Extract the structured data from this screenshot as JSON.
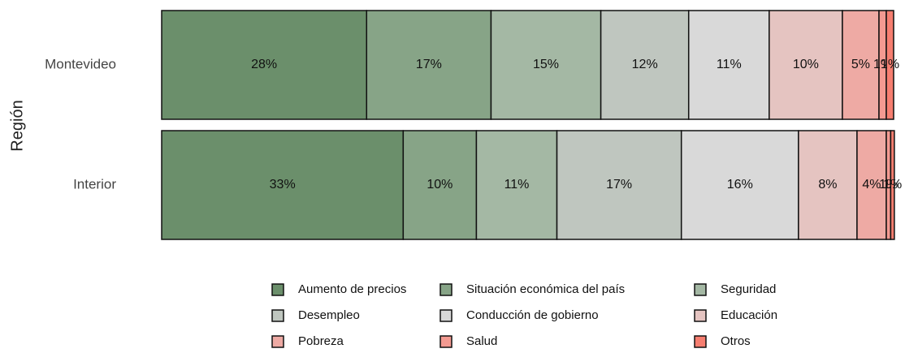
{
  "chart_data": {
    "type": "stacked_barh",
    "y_label": "Región",
    "categories": [
      "Montevideo",
      "Interior"
    ],
    "xlim": [
      0,
      100
    ],
    "series": [
      {
        "name": "Aumento de precios",
        "color": "#6b8f6b",
        "values": [
          28,
          33
        ],
        "value_labels": [
          "28%",
          "33%"
        ]
      },
      {
        "name": "Situación económica del país",
        "color": "#87a487",
        "values": [
          17,
          10
        ],
        "value_labels": [
          "17%",
          "10%"
        ]
      },
      {
        "name": "Seguridad",
        "color": "#a4b8a4",
        "values": [
          15,
          11
        ],
        "value_labels": [
          "15%",
          "11%"
        ]
      },
      {
        "name": "Desempleo",
        "color": "#bfc6bf",
        "values": [
          12,
          17
        ],
        "value_labels": [
          "12%",
          "17%"
        ]
      },
      {
        "name": "Conducción de gobierno",
        "color": "#d9d9d9",
        "values": [
          11,
          16
        ],
        "value_labels": [
          "11%",
          "16%"
        ]
      },
      {
        "name": "Educación",
        "color": "#e5c4c1",
        "values": [
          10,
          8
        ],
        "value_labels": [
          "10%",
          "8%"
        ]
      },
      {
        "name": "Pobreza",
        "color": "#eeaaa4",
        "values": [
          5,
          4
        ],
        "value_labels": [
          "5%",
          "4%"
        ]
      },
      {
        "name": "Salud",
        "color": "#f39a91",
        "values": [
          1,
          0.6
        ],
        "value_labels": [
          "1%",
          "1%"
        ]
      },
      {
        "name": "Otros",
        "color": "#f67e70",
        "values": [
          1,
          0.5
        ],
        "value_labels": [
          "1%",
          "1%"
        ]
      }
    ]
  }
}
